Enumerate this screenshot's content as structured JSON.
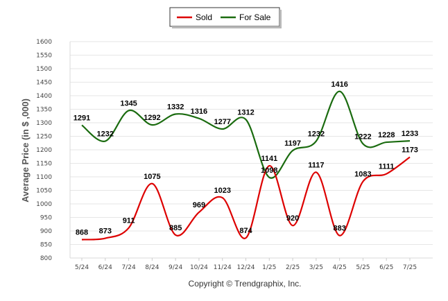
{
  "chart_data": {
    "type": "line",
    "title": "",
    "xlabel": "",
    "ylabel": "Average Price (in $ ,000)",
    "ylim": [
      800,
      1600
    ],
    "ytick_step": 50,
    "grid": true,
    "legend_position": "top-center",
    "categories": [
      "5/24",
      "6/24",
      "7/24",
      "8/24",
      "9/24",
      "10/24",
      "11/24",
      "12/24",
      "1/25",
      "2/25",
      "3/25",
      "4/25",
      "5/25",
      "6/25",
      "7/25"
    ],
    "series": [
      {
        "name": "Sold",
        "color": "#dd0000",
        "values": [
          868,
          873,
          911,
          1075,
          885,
          969,
          1023,
          874,
          1141,
          920,
          1117,
          883,
          1083,
          1111,
          1173
        ]
      },
      {
        "name": "For Sale",
        "color": "#1a6b0f",
        "values": [
          1291,
          1232,
          1345,
          1292,
          1332,
          1316,
          1277,
          1312,
          1098,
          1197,
          1232,
          1416,
          1222,
          1228,
          1233
        ]
      }
    ],
    "credit": "Copyright © Trendgraphix, Inc."
  }
}
